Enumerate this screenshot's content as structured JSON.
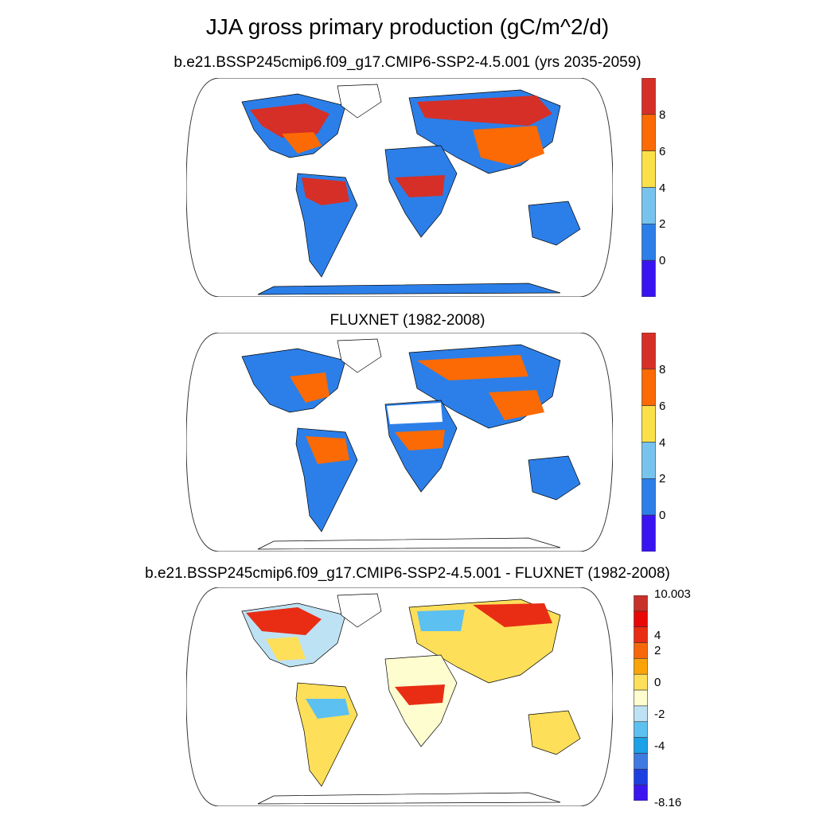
{
  "figure": {
    "title": "JJA gross primary production (gC/m^2/d)"
  },
  "panels": [
    {
      "subtitle": "b.e21.BSSP245cmip6.f09_g17.CMIP6-SSP2-4.5.001 (yrs 2035-2059)",
      "colorbar": {
        "colors": [
          "#3a14f0",
          "#2c7fe8",
          "#77c3ee",
          "#fbe04a",
          "#fb6a04",
          "#d62f27"
        ],
        "labels": [
          "0",
          "2",
          "4",
          "6",
          "8"
        ]
      }
    },
    {
      "subtitle": "FLUXNET (1982-2008)",
      "colorbar": {
        "colors": [
          "#3a14f0",
          "#2c7fe8",
          "#77c3ee",
          "#fbe04a",
          "#fb6a04",
          "#d62f27"
        ],
        "labels": [
          "0",
          "2",
          "4",
          "6",
          "8"
        ]
      }
    },
    {
      "subtitle": "b.e21.BSSP245cmip6.f09_g17.CMIP6-SSP2-4.5.001 - FLUXNET (1982-2008)",
      "colorbar": {
        "colors": [
          "#3b16ee",
          "#1e3fe0",
          "#3f7ae0",
          "#1aa1e8",
          "#5cc0f0",
          "#bde2f4",
          "#fefdd0",
          "#fddf5a",
          "#fba40a",
          "#f8680a",
          "#e82d14",
          "#e80808",
          "#c8302a"
        ],
        "labels": [
          "10.003",
          "4",
          "2",
          "0",
          "-2",
          "-4",
          "-8.16"
        ]
      }
    }
  ],
  "colors": {
    "ocean": "#ffffff",
    "coastline": "#000000",
    "frame": "#333333"
  }
}
